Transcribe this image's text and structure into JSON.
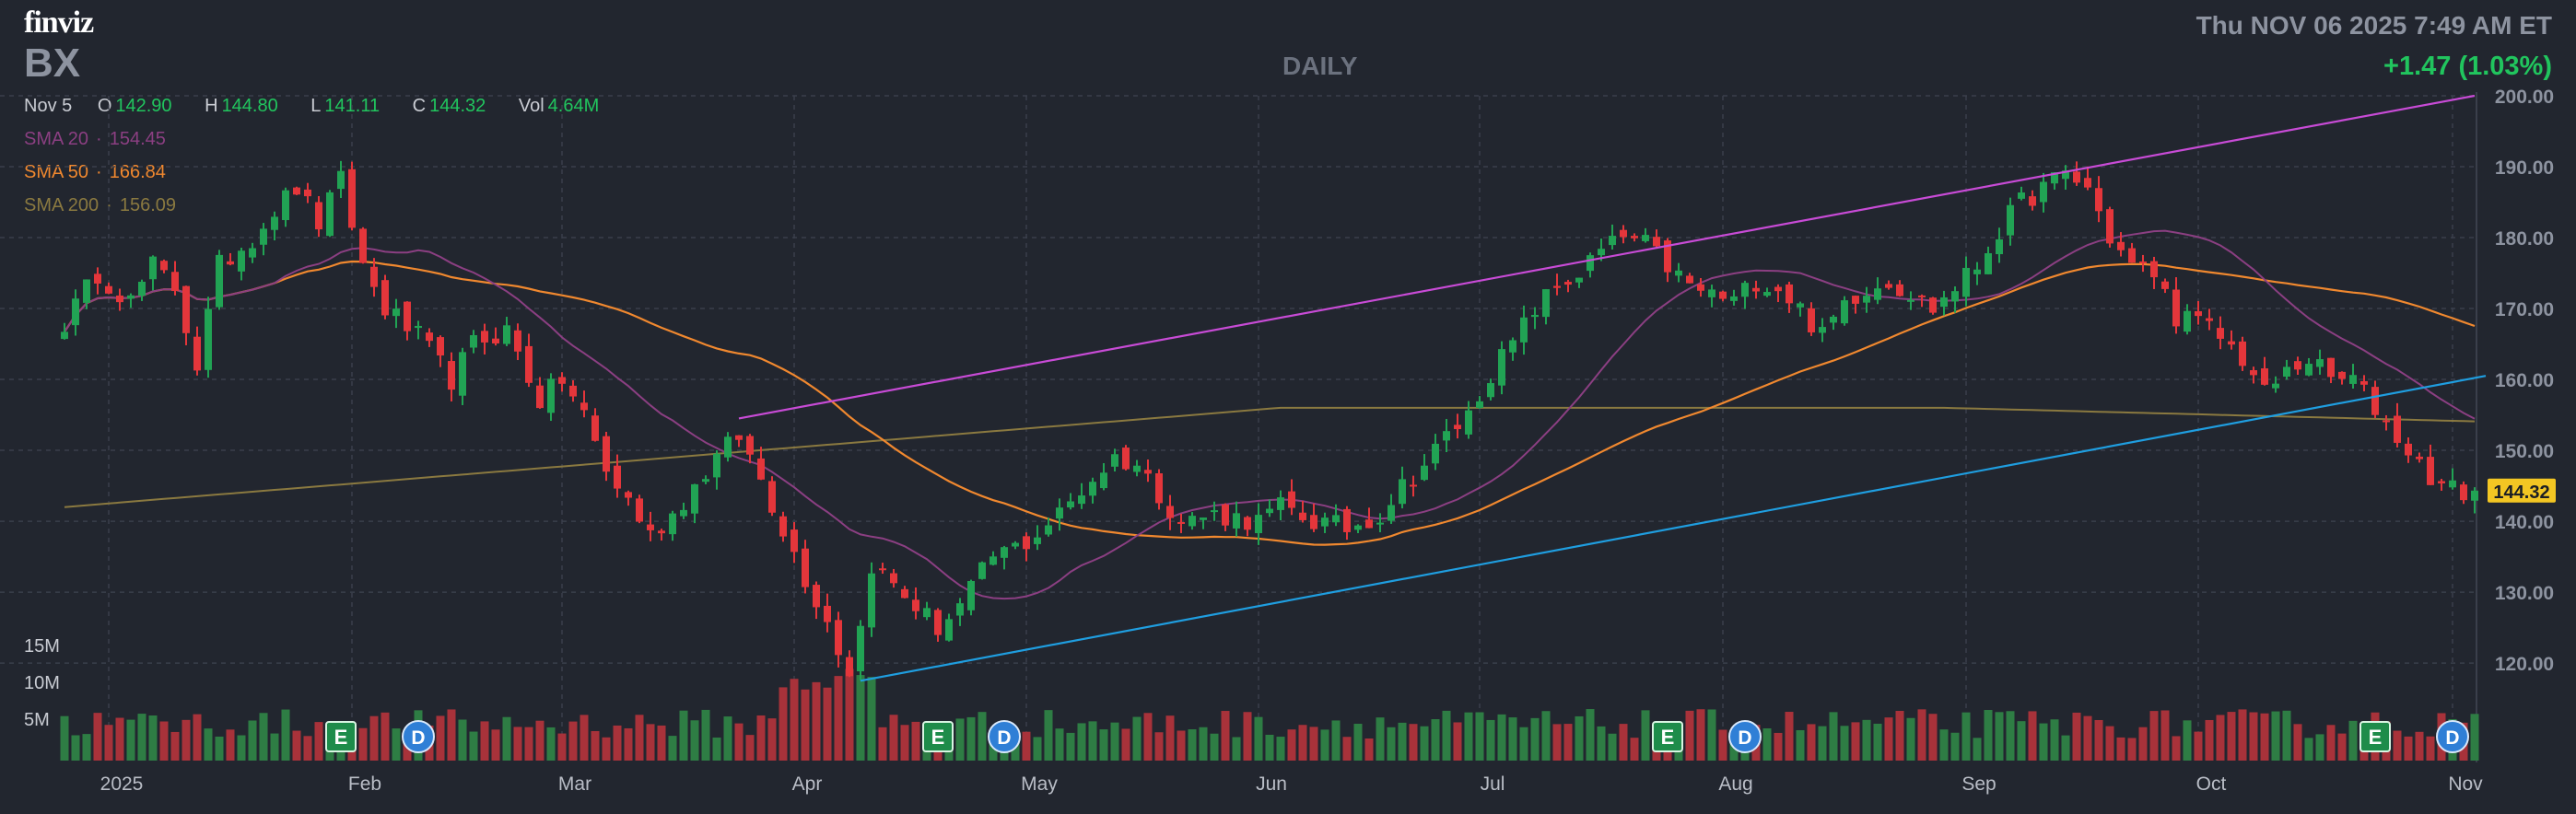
{
  "app": {
    "logo": "finviz",
    "ticker": "BX",
    "timeframe": "DAILY",
    "datetime": "Thu NOV 06 2025 7:49 AM ET",
    "change": "+1.47 (1.03%)"
  },
  "ohlc": {
    "date": "Nov 5",
    "o_label": "O",
    "o": "142.90",
    "h_label": "H",
    "h": "144.80",
    "l_label": "L",
    "l": "141.11",
    "c_label": "C",
    "c": "144.32",
    "vol_label": "Vol",
    "vol": "4.64M"
  },
  "indicators": {
    "sma20": {
      "label": "SMA 20",
      "sep": "·",
      "value": "154.45",
      "color": "#8b3f82"
    },
    "sma50": {
      "label": "SMA 50",
      "sep": "·",
      "value": "166.84",
      "color": "#f0882f"
    },
    "sma200": {
      "label": "SMA 200",
      "sep": "·",
      "value": "156.09",
      "color": "#8a7940"
    }
  },
  "colors": {
    "up": "#21a354",
    "down": "#e4363b",
    "vol_up": "#2e7d44",
    "vol_down": "#a8323a",
    "upper_trend": "#c84bd6",
    "lower_trend": "#1f9ee0",
    "last_price_bg": "#f3c623",
    "earnings": "#1e8c4a",
    "dividend": "#2f7fd6"
  },
  "chart_data": {
    "type": "candlestick",
    "title": "",
    "ylim": [
      113,
      200
    ],
    "yticks": [
      "200.00",
      "190.00",
      "180.00",
      "170.00",
      "160.00",
      "150.00",
      "140.00",
      "130.00",
      "120.00"
    ],
    "volume_ticks": [
      "15M",
      "10M",
      "5M"
    ],
    "x_labels": [
      {
        "label": "2025",
        "day": 4
      },
      {
        "label": "Feb",
        "day": 26
      },
      {
        "label": "Mar",
        "day": 45
      },
      {
        "label": "Apr",
        "day": 66
      },
      {
        "label": "May",
        "day": 87
      },
      {
        "label": "Jun",
        "day": 108
      },
      {
        "label": "Jul",
        "day": 128
      },
      {
        "label": "Aug",
        "day": 150
      },
      {
        "label": "Sep",
        "day": 172
      },
      {
        "label": "Oct",
        "day": 193
      },
      {
        "label": "Nov",
        "day": 216
      }
    ],
    "last_price": "144.32",
    "markers": [
      {
        "type": "E",
        "day": 25
      },
      {
        "type": "D",
        "day": 32
      },
      {
        "type": "E",
        "day": 79
      },
      {
        "type": "D",
        "day": 85
      },
      {
        "type": "E",
        "day": 145
      },
      {
        "type": "D",
        "day": 152
      },
      {
        "type": "E",
        "day": 209
      },
      {
        "type": "D",
        "day": 216
      }
    ],
    "upper_trendline": [
      {
        "day": 61,
        "price": 154.5
      },
      {
        "day": 218,
        "price": 200.0
      }
    ],
    "lower_trendline": [
      {
        "day": 72,
        "price": 117.5
      },
      {
        "day": 219,
        "price": 160.5
      }
    ],
    "anchors": [
      [
        0,
        168
      ],
      [
        3,
        175
      ],
      [
        6,
        171
      ],
      [
        8,
        176
      ],
      [
        10,
        173
      ],
      [
        12,
        162
      ],
      [
        14,
        176
      ],
      [
        17,
        180
      ],
      [
        19,
        184
      ],
      [
        21,
        187
      ],
      [
        23,
        182
      ],
      [
        25,
        188
      ],
      [
        27,
        176
      ],
      [
        29,
        170
      ],
      [
        32,
        166
      ],
      [
        35,
        160
      ],
      [
        37,
        165
      ],
      [
        40,
        167
      ],
      [
        43,
        157
      ],
      [
        45,
        160
      ],
      [
        47,
        155
      ],
      [
        49,
        147
      ],
      [
        51,
        143
      ],
      [
        53,
        138
      ],
      [
        55,
        141
      ],
      [
        57,
        145
      ],
      [
        59,
        149
      ],
      [
        61,
        152
      ],
      [
        63,
        146
      ],
      [
        65,
        139
      ],
      [
        67,
        132
      ],
      [
        69,
        126
      ],
      [
        70,
        122
      ],
      [
        71,
        119
      ],
      [
        72,
        125
      ],
      [
        73,
        134
      ],
      [
        75,
        131
      ],
      [
        77,
        128
      ],
      [
        79,
        125
      ],
      [
        81,
        128
      ],
      [
        84,
        135
      ],
      [
        87,
        137
      ],
      [
        90,
        141
      ],
      [
        93,
        146
      ],
      [
        95,
        149
      ],
      [
        97,
        148
      ],
      [
        99,
        144
      ],
      [
        101,
        140
      ],
      [
        104,
        141
      ],
      [
        108,
        140
      ],
      [
        110,
        142
      ],
      [
        113,
        140
      ],
      [
        116,
        139
      ],
      [
        119,
        141
      ],
      [
        121,
        145
      ],
      [
        123,
        148
      ],
      [
        125,
        152
      ],
      [
        127,
        155
      ],
      [
        129,
        161
      ],
      [
        131,
        165
      ],
      [
        133,
        170
      ],
      [
        135,
        173
      ],
      [
        137,
        175
      ],
      [
        139,
        178
      ],
      [
        141,
        180
      ],
      [
        143,
        179
      ],
      [
        145,
        176
      ],
      [
        147,
        173
      ],
      [
        149,
        172
      ],
      [
        151,
        171
      ],
      [
        153,
        174
      ],
      [
        155,
        173
      ],
      [
        157,
        170
      ],
      [
        159,
        166
      ],
      [
        161,
        171
      ],
      [
        163,
        173
      ],
      [
        165,
        174
      ],
      [
        167,
        172
      ],
      [
        169,
        170
      ],
      [
        171,
        173
      ],
      [
        173,
        176
      ],
      [
        175,
        181
      ],
      [
        177,
        185
      ],
      [
        179,
        187
      ],
      [
        181,
        189
      ],
      [
        183,
        187
      ],
      [
        185,
        180
      ],
      [
        187,
        176
      ],
      [
        189,
        175
      ],
      [
        191,
        169
      ],
      [
        193,
        168
      ],
      [
        195,
        166
      ],
      [
        197,
        163
      ],
      [
        199,
        158
      ],
      [
        201,
        161
      ],
      [
        203,
        163
      ],
      [
        205,
        160
      ],
      [
        207,
        160
      ],
      [
        209,
        156
      ],
      [
        211,
        152
      ],
      [
        213,
        148
      ],
      [
        215,
        145
      ],
      [
        217,
        144
      ]
    ]
  }
}
